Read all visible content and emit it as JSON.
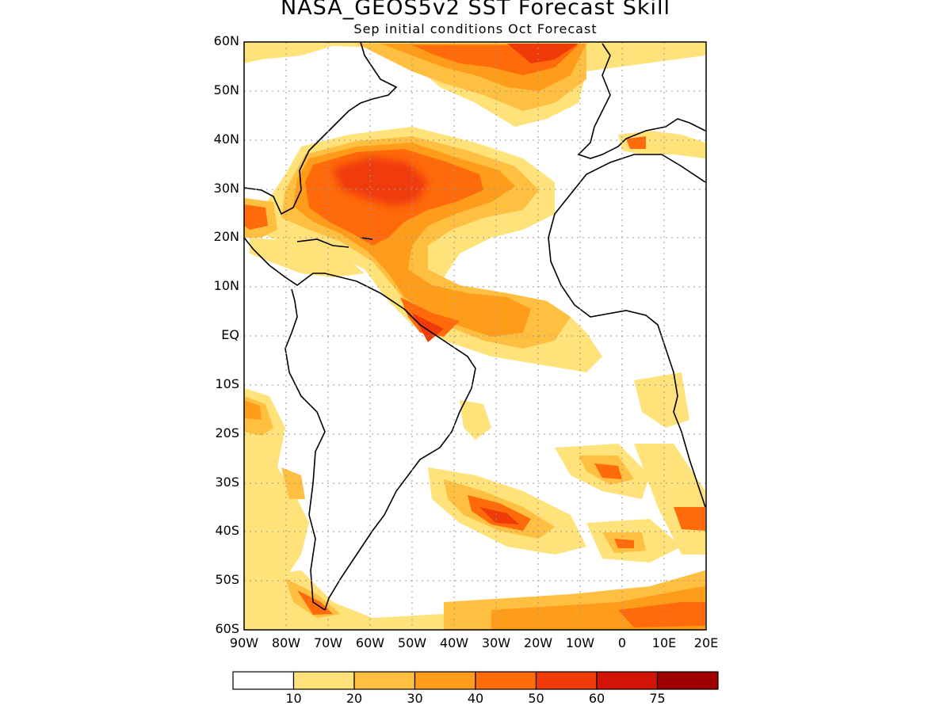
{
  "title": "NASA_GEOS5v2 SST Forecast Skill",
  "subtitle": "Sep initial conditions  Oct Forecast",
  "lat_labels": [
    "60N",
    "50N",
    "40N",
    "30N",
    "20N",
    "10N",
    "EQ",
    "10S",
    "20S",
    "30S",
    "40S",
    "50S",
    "60S"
  ],
  "lon_labels": [
    "90W",
    "80W",
    "70W",
    "60W",
    "50W",
    "40W",
    "30W",
    "20W",
    "10W",
    "0",
    "10E",
    "20E"
  ],
  "colorbar": {
    "labels": [
      "10",
      "20",
      "30",
      "40",
      "50",
      "60",
      "75"
    ],
    "colors": [
      "#ffffff",
      "#ffe27a",
      "#ffbf40",
      "#ff9d1a",
      "#ff6a0a",
      "#f03a08",
      "#d21406",
      "#a00000"
    ]
  },
  "map_colors": {
    "land_outline": "#000000",
    "grid": "#9a9a9a",
    "frame": "#000000"
  }
}
